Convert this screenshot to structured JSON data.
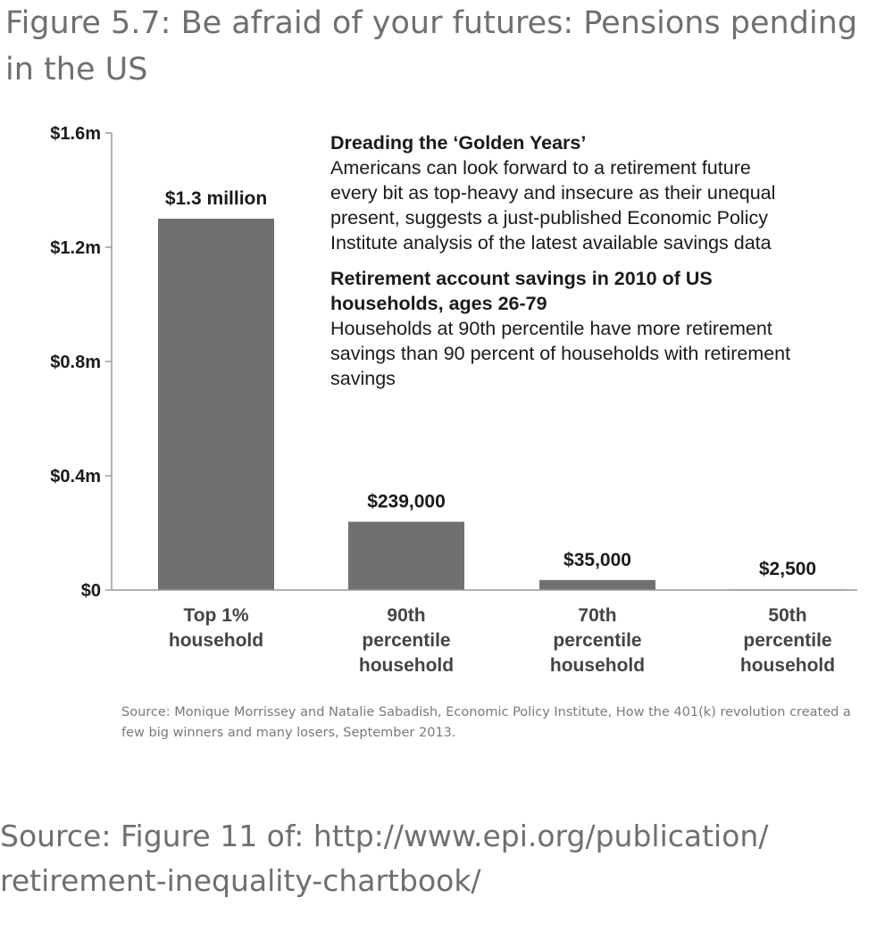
{
  "figure": {
    "title": "Figure 5.7: Be afraid of your futures: Pensions pending in the US"
  },
  "annotation": {
    "heading1": "Dreading the ‘Golden Years’",
    "text1": "Americans can look forward to a retirement future every bit as top-heavy and insecure as their unequal present, suggests a just-published Economic Policy Institute analysis of the latest available savings data",
    "heading2": "Retirement account savings in 2010 of US households, ages 26-79",
    "text2": "Households at 90th percentile have more retirement savings than 90 percent of households with retirement savings"
  },
  "chart_source": "Source: Monique Morrissey and Natalie Sabadish, Economic Policy Institute, How the 401(k) revolution created a few big winners and many losers, September 2013.",
  "page_source": "Source: Figure 11 of: http://www.epi.org/publication/ retirement-inequality-chartbook/",
  "chart_data": {
    "type": "bar",
    "categories": [
      [
        "Top 1%",
        "household"
      ],
      [
        "90th",
        "percentile",
        "household"
      ],
      [
        "70th",
        "percentile",
        "household"
      ],
      [
        "50th",
        "percentile",
        "household"
      ]
    ],
    "values": [
      1300000,
      239000,
      35000,
      2500
    ],
    "data_labels": [
      "$1.3 million",
      "$239,000",
      "$35,000",
      "$2,500"
    ],
    "yticks": [
      0,
      400000,
      800000,
      1200000,
      1600000
    ],
    "ytick_labels": [
      "$0",
      "$0.4m",
      "$0.8m",
      "$1.2m",
      "$1.6m"
    ],
    "ylim": [
      0,
      1600000
    ],
    "title": "",
    "xlabel": "",
    "ylabel": "",
    "grid": false,
    "bar_color": "#707070",
    "axis_color": "#9a9a9a"
  }
}
